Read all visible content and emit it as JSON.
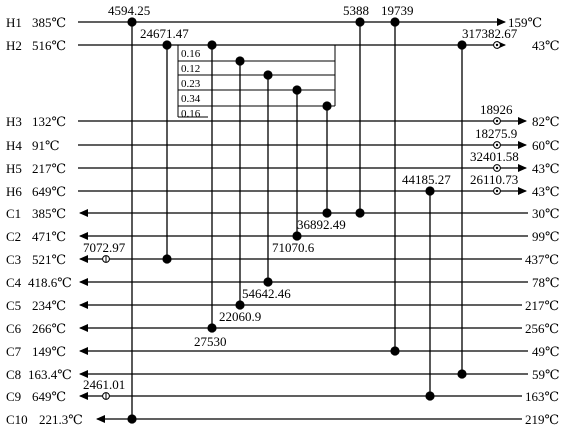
{
  "streams": [
    {
      "id": "hot-stream-h1",
      "name": "H1",
      "tin": "385℃",
      "tout": "159℃",
      "dir": "right"
    },
    {
      "id": "hot-stream-h2",
      "name": "H2",
      "tin": "516℃",
      "tout": "43℃",
      "dir": "right"
    },
    {
      "id": "hot-stream-h3",
      "name": "H3",
      "tin": "132℃",
      "tout": "82℃",
      "dir": "right"
    },
    {
      "id": "hot-stream-h4",
      "name": "H4",
      "tin": "91℃",
      "tout": "60℃",
      "dir": "right"
    },
    {
      "id": "hot-stream-h5",
      "name": "H5",
      "tin": "217℃",
      "tout": "43℃",
      "dir": "right"
    },
    {
      "id": "hot-stream-h6",
      "name": "H6",
      "tin": "649℃",
      "tout": "43℃",
      "dir": "right"
    },
    {
      "id": "cold-stream-c1",
      "name": "C1",
      "tin": "30℃",
      "tout": "385℃",
      "dir": "left"
    },
    {
      "id": "cold-stream-c2",
      "name": "C2",
      "tin": "99℃",
      "tout": "471℃",
      "dir": "left"
    },
    {
      "id": "cold-stream-c3",
      "name": "C3",
      "tin": "437℃",
      "tout": "521℃",
      "dir": "left"
    },
    {
      "id": "cold-stream-c4",
      "name": "C4",
      "tin": "78℃",
      "tout": "418.6℃",
      "dir": "left"
    },
    {
      "id": "cold-stream-c5",
      "name": "C5",
      "tin": "217℃",
      "tout": "234℃",
      "dir": "left"
    },
    {
      "id": "cold-stream-c6",
      "name": "C6",
      "tin": "256℃",
      "tout": "266℃",
      "dir": "left"
    },
    {
      "id": "cold-stream-c7",
      "name": "C7",
      "tin": "49℃",
      "tout": "149℃",
      "dir": "left"
    },
    {
      "id": "cold-stream-c8",
      "name": "C8",
      "tin": "59℃",
      "tout": "163.4℃",
      "dir": "left"
    },
    {
      "id": "cold-stream-c9",
      "name": "C9",
      "tin": "163℃",
      "tout": "649℃",
      "dir": "left"
    },
    {
      "id": "cold-stream-c10",
      "name": "C10",
      "tin": "219℃",
      "tout": "221.3℃",
      "dir": "left"
    }
  ],
  "exchangers": [
    {
      "id": "exchanger-h1-c10",
      "hot": "H1",
      "cold": "C10",
      "duty": "4594.25"
    },
    {
      "id": "exchanger-h2-c3",
      "hot": "H2",
      "cold": "C3",
      "duty": "24671.47"
    },
    {
      "id": "exchanger-h2-c6",
      "hot": "H2",
      "cold": "C6",
      "duty": "27530"
    },
    {
      "id": "exchanger-h2-c5",
      "hot": "H2",
      "cold": "C5",
      "duty": "22060.9"
    },
    {
      "id": "exchanger-h2-c4",
      "hot": "H2",
      "cold": "C4",
      "duty": "54642.46"
    },
    {
      "id": "exchanger-h2-c2",
      "hot": "H2",
      "cold": "C2",
      "duty": "71070.6"
    },
    {
      "id": "exchanger-h2-c1",
      "hot": "H2",
      "cold": "C1",
      "duty": "36892.49"
    },
    {
      "id": "exchanger-h1-c1",
      "hot": "H1",
      "cold": "C1",
      "duty": "5388"
    },
    {
      "id": "exchanger-h1-c7",
      "hot": "H1",
      "cold": "C7",
      "duty": "19739"
    },
    {
      "id": "exchanger-h2-c8",
      "hot": "H2",
      "cold": "C8",
      "duty": ""
    },
    {
      "id": "exchanger-h6-c9",
      "hot": "H6",
      "cold": "C9",
      "duty": "44185.27"
    }
  ],
  "utilities": [
    {
      "id": "cooler-h2",
      "stream": "H2",
      "duty": "317382.67"
    },
    {
      "id": "cooler-h3",
      "stream": "H3",
      "duty": "18926"
    },
    {
      "id": "cooler-h4",
      "stream": "H4",
      "duty": "18275.9"
    },
    {
      "id": "cooler-h5",
      "stream": "H5",
      "duty": "32401.58"
    },
    {
      "id": "cooler-h6",
      "stream": "H6",
      "duty": "26110.73"
    },
    {
      "id": "heater-c3",
      "stream": "C3",
      "duty": "7072.97"
    },
    {
      "id": "heater-c9",
      "stream": "C9",
      "duty": "2461.01"
    }
  ],
  "split_fractions": [
    "0.16",
    "0.12",
    "0.23",
    "0.34",
    "0.16"
  ],
  "colors": {
    "line": "#000000",
    "background": "#ffffff"
  }
}
